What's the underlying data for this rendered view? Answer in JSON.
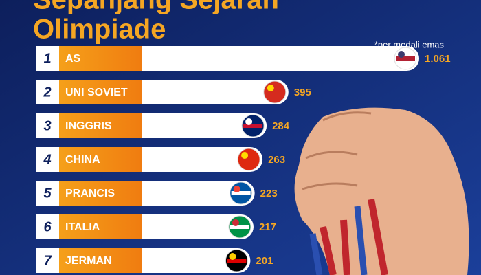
{
  "chart_data": {
    "type": "bar",
    "title_lines": [
      "Sepanjang Sejarah",
      "Olimpiade"
    ],
    "note": "*per medali emas",
    "ranks": [
      1,
      2,
      3,
      4,
      5,
      6,
      7
    ],
    "categories": [
      "AS",
      "UNI SOVIET",
      "INGGRIS",
      "CHINA",
      "PRANCIS",
      "ITALIA",
      "JERMAN"
    ],
    "values": [
      1061,
      395,
      284,
      263,
      223,
      217,
      201
    ],
    "value_labels": [
      "1.061",
      "395",
      "284",
      "263",
      "223",
      "217",
      "201"
    ],
    "color": "#ffffff"
  }
}
